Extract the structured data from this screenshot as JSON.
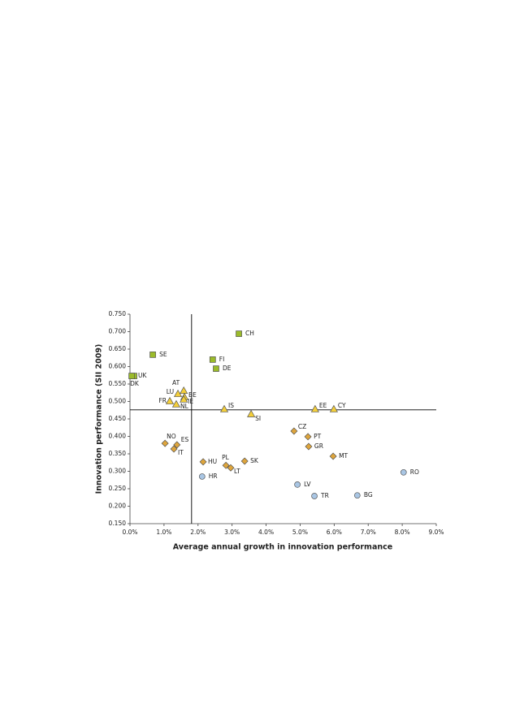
{
  "chart_data": {
    "type": "scatter",
    "xlabel": "Average annual growth in innovation performance",
    "ylabel": "Innovation performance (SII 2009)",
    "xlim": [
      0,
      9
    ],
    "ylim": [
      0.15,
      0.75
    ],
    "xticks": [
      {
        "value": 0,
        "label": "0.0%"
      },
      {
        "value": 1,
        "label": "1.0%"
      },
      {
        "value": 2,
        "label": "2.0%"
      },
      {
        "value": 3,
        "label": "3.0%"
      },
      {
        "value": 4,
        "label": "4.0%"
      },
      {
        "value": 5,
        "label": "5.0%"
      },
      {
        "value": 6,
        "label": "6.0%"
      },
      {
        "value": 7,
        "label": "7.0%"
      },
      {
        "value": 8,
        "label": "8.0%"
      },
      {
        "value": 9,
        "label": "9.0%"
      }
    ],
    "yticks": [
      {
        "value": 0.15,
        "label": "0.150"
      },
      {
        "value": 0.2,
        "label": "0.200"
      },
      {
        "value": 0.25,
        "label": "0.250"
      },
      {
        "value": 0.3,
        "label": "0.300"
      },
      {
        "value": 0.35,
        "label": "0.350"
      },
      {
        "value": 0.4,
        "label": "0.400"
      },
      {
        "value": 0.45,
        "label": "0.450"
      },
      {
        "value": 0.5,
        "label": "0.500"
      },
      {
        "value": 0.55,
        "label": "0.550"
      },
      {
        "value": 0.6,
        "label": "0.600"
      },
      {
        "value": 0.65,
        "label": "0.650"
      },
      {
        "value": 0.7,
        "label": "0.700"
      },
      {
        "value": 0.75,
        "label": "0.750"
      }
    ],
    "reference_lines": {
      "x": 1.81,
      "y": 0.476
    },
    "series": [
      {
        "marker": "square",
        "color": "#9bbb2a",
        "labels": [
          "SE",
          "UK",
          "DK",
          "CH",
          "FI",
          "DE"
        ],
        "x": [
          0.67,
          0.12,
          0.05,
          3.2,
          2.43,
          2.53
        ],
        "values": [
          0.634,
          0.573,
          0.573,
          0.694,
          0.62,
          0.594
        ]
      },
      {
        "marker": "triangle",
        "color": "#f4cf3a",
        "labels": [
          "AT",
          "LU",
          "BE",
          "IE",
          "FR",
          "NL",
          "IS",
          "SI",
          "EE",
          "CY"
        ],
        "x": [
          1.58,
          1.41,
          1.6,
          1.58,
          1.17,
          1.36,
          2.77,
          3.56,
          5.44,
          5.99
        ],
        "values": [
          0.531,
          0.522,
          0.513,
          0.506,
          0.501,
          0.492,
          0.478,
          0.464,
          0.478,
          0.478
        ]
      },
      {
        "marker": "diamond",
        "color": "#dea53c",
        "labels": [
          "NO",
          "ES",
          "IT",
          "HU",
          "PL",
          "LT",
          "SK",
          "CZ",
          "PT",
          "GR",
          "MT"
        ],
        "x": [
          1.03,
          1.38,
          1.29,
          2.15,
          2.82,
          2.96,
          3.37,
          4.82,
          5.23,
          5.25,
          5.97
        ],
        "values": [
          0.38,
          0.376,
          0.364,
          0.327,
          0.317,
          0.31,
          0.329,
          0.415,
          0.399,
          0.371,
          0.343
        ]
      },
      {
        "marker": "circle",
        "color": "#a9c6e4",
        "labels": [
          "HR",
          "LV",
          "TR",
          "BG",
          "RO"
        ],
        "x": [
          2.12,
          4.92,
          5.42,
          6.68,
          8.04
        ],
        "values": [
          0.285,
          0.262,
          0.229,
          0.231,
          0.297
        ]
      }
    ]
  }
}
